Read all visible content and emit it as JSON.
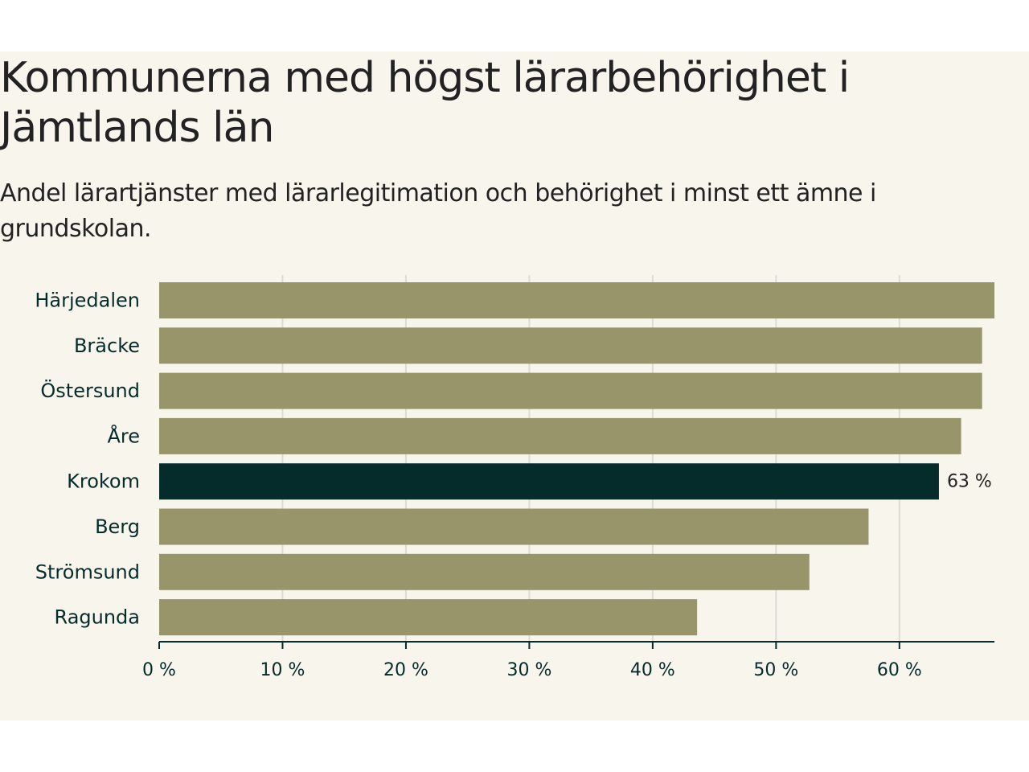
{
  "chart_data": {
    "type": "bar",
    "orientation": "horizontal",
    "title": "Kommunerna med högst lärarbehörighet i Jämtlands län",
    "subtitle": "Andel lärartjänster med lärarlegitimation och behörighet i minst ett ämne i grundskolan.",
    "categories": [
      "Härjedalen",
      "Bräcke",
      "Östersund",
      "Åre",
      "Krokom",
      "Berg",
      "Strömsund",
      "Ragunda"
    ],
    "values": [
      67.7,
      66.7,
      66.7,
      65.0,
      63.2,
      57.5,
      52.7,
      43.6
    ],
    "highlight_category": "Krokom",
    "highlight_label": "63 %",
    "xlim": [
      0,
      67.7
    ],
    "xticks": [
      0,
      10,
      20,
      30,
      40,
      50,
      60
    ],
    "xtick_labels": [
      "0 %",
      "10 %",
      "20 %",
      "30 %",
      "40 %",
      "50 %",
      "60 %"
    ],
    "grid": true,
    "colors": {
      "bar": "#99956b",
      "highlight": "#062b2b",
      "grid": "#dddbd3",
      "axis": "#062b2b"
    }
  }
}
